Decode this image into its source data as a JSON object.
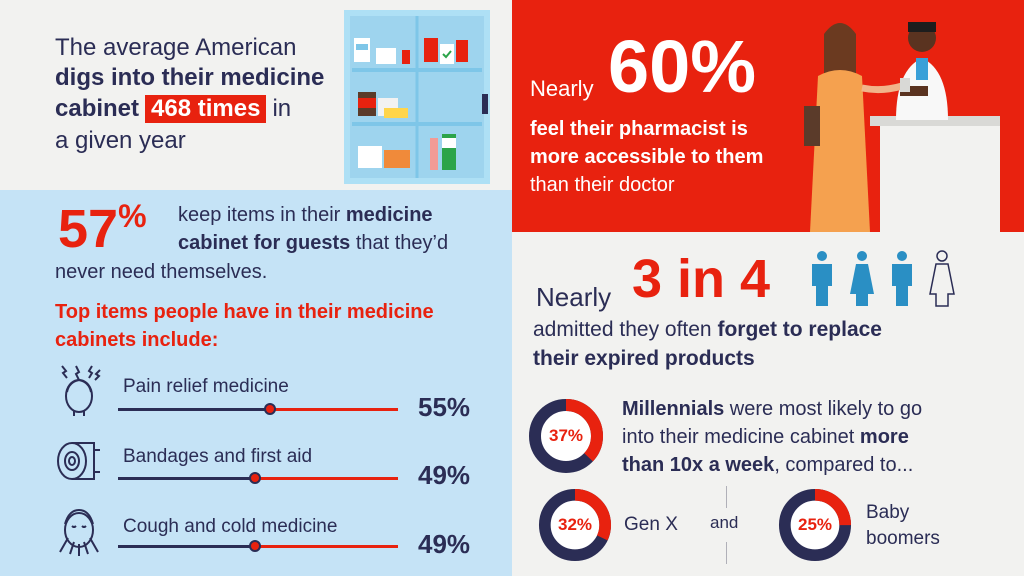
{
  "top_left": {
    "line1": "The average American",
    "line2": "digs into their medicine",
    "line3_pre": "cabinet",
    "highlight": "468 times",
    "line3_post": "in",
    "line4": "a given year"
  },
  "stat57": {
    "number": "57",
    "percent_sign": "%",
    "line1_pre": "keep items in their ",
    "line1_bold": "medicine",
    "line2_bold": "cabinet for guests",
    "line2_post": " that they’d",
    "line3": "never need themselves."
  },
  "top_items": {
    "heading_line1": "Top items people have in their medicine",
    "heading_line2": "cabinets include:",
    "items": [
      {
        "label": "Pain relief medicine",
        "percent": "55%",
        "value": 55
      },
      {
        "label": "Bandages and first aid",
        "percent": "49%",
        "value": 49
      },
      {
        "label": "Cough and cold medicine",
        "percent": "49%",
        "value": 49
      }
    ]
  },
  "stat60": {
    "nearly": "Nearly",
    "number": "60%",
    "line1": "feel their pharmacist is",
    "line2": "more accessible to them",
    "line3": "than their doctor"
  },
  "stat34": {
    "nearly": "Nearly",
    "number": "3 in 4",
    "line1_pre": "admitted they often ",
    "line1_bold": "forget to replace",
    "line2": "their expired products"
  },
  "generations": {
    "millennials": {
      "percent": "37%",
      "value": 37
    },
    "mil_line1_bold": "Millennials",
    "mil_line1_post": " were most likely to go",
    "mil_line2_pre": "into their medicine cabinet ",
    "mil_line2_bold": "more",
    "mil_line3_bold": "than 10x a week",
    "mil_line3_post": ", compared to...",
    "genx": {
      "percent": "32%",
      "value": 32,
      "label": "Gen X"
    },
    "and": "and",
    "boomers": {
      "percent": "25%",
      "value": 25,
      "label_line1": "Baby",
      "label_line2": "boomers"
    }
  },
  "colors": {
    "red": "#e8220f",
    "navy": "#2b2d55",
    "light_blue": "#c5e3f6",
    "offwhite": "#f2f2f0"
  }
}
